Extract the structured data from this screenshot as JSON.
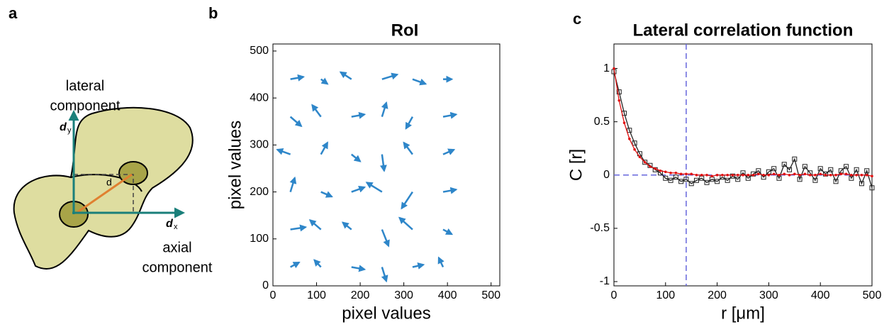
{
  "diagram": {
    "panel_label": "a",
    "lateral_line1": "lateral",
    "lateral_line2": "component",
    "axial_line1": "axial",
    "axial_line2": "component",
    "dy_main": "d",
    "dy_sub": "y",
    "dx_main": "d",
    "dx_sub": "x",
    "distance_label": "d"
  },
  "chart_data": [
    {
      "type": "quiver",
      "panel_label": "b",
      "title": "RoI",
      "x_label": "pixel values",
      "y_label": "pixel values",
      "color": "#2e86c9",
      "xlim": [
        0,
        520
      ],
      "ylim": [
        0,
        515
      ],
      "xticks": [
        0,
        100,
        200,
        300,
        400,
        500
      ],
      "yticks": [
        0,
        100,
        200,
        300,
        400,
        500
      ],
      "x": [
        40,
        110,
        180,
        250,
        320,
        390,
        40,
        110,
        180,
        250,
        320,
        390,
        40,
        110,
        180,
        250,
        320,
        390,
        40,
        110,
        180,
        250,
        320,
        390,
        40,
        110,
        180,
        250,
        320,
        390,
        40,
        110,
        180,
        250,
        320,
        390
      ],
      "y": [
        40,
        40,
        40,
        40,
        40,
        40,
        120,
        120,
        120,
        120,
        120,
        120,
        200,
        200,
        200,
        200,
        200,
        200,
        280,
        280,
        280,
        280,
        280,
        280,
        360,
        360,
        360,
        360,
        360,
        360,
        440,
        440,
        440,
        440,
        440,
        440
      ],
      "u": [
        20,
        -15,
        30,
        10,
        25,
        -10,
        35,
        -25,
        -20,
        15,
        -30,
        20,
        10,
        25,
        30,
        -35,
        -25,
        30,
        -30,
        15,
        20,
        5,
        -20,
        25,
        25,
        -20,
        30,
        10,
        -15,
        30,
        30,
        15,
        -25,
        35,
        30,
        20
      ],
      "v": [
        10,
        15,
        -5,
        -30,
        5,
        20,
        5,
        20,
        15,
        -35,
        25,
        -10,
        30,
        -10,
        10,
        20,
        -35,
        5,
        10,
        25,
        -15,
        -35,
        25,
        10,
        -20,
        25,
        5,
        30,
        -25,
        5,
        5,
        -10,
        15,
        10,
        -10,
        0
      ]
    },
    {
      "type": "line",
      "panel_label": "c",
      "title": "Lateral correlation function",
      "x_label": "r [μm]",
      "y_label": "C [r]",
      "xlim": [
        0,
        500
      ],
      "ylim": [
        -1.04,
        1.23
      ],
      "xticks": [
        0,
        100,
        200,
        300,
        400,
        500
      ],
      "yticks": [
        -1,
        -0.5,
        0,
        0.5,
        1
      ],
      "vline": 140,
      "hline": 0,
      "line_color": "#6666dd",
      "x": [
        0,
        10,
        20,
        30,
        40,
        50,
        60,
        70,
        80,
        90,
        100,
        110,
        120,
        130,
        140,
        150,
        160,
        170,
        180,
        190,
        200,
        210,
        220,
        230,
        240,
        250,
        260,
        270,
        280,
        290,
        300,
        310,
        320,
        330,
        340,
        350,
        360,
        370,
        380,
        390,
        400,
        410,
        420,
        430,
        440,
        450,
        460,
        470,
        480,
        490,
        500
      ],
      "series": [
        {
          "color": "#222222",
          "marker": "square",
          "values": [
            0.97,
            0.78,
            0.58,
            0.42,
            0.3,
            0.2,
            0.12,
            0.09,
            0.05,
            0.02,
            -0.03,
            -0.05,
            -0.02,
            -0.06,
            -0.04,
            -0.08,
            -0.05,
            -0.03,
            -0.07,
            -0.04,
            -0.06,
            -0.02,
            -0.05,
            -0.01,
            -0.04,
            0.02,
            -0.03,
            0.01,
            0.04,
            -0.02,
            0.03,
            0.06,
            -0.03,
            0.1,
            0.05,
            0.15,
            -0.04,
            0.08,
            0.02,
            -0.05,
            0.06,
            0.01,
            0.05,
            -0.06,
            0.04,
            0.08,
            -0.03,
            0.05,
            -0.08,
            0.04,
            -0.12
          ]
        },
        {
          "color": "#e01010",
          "marker": "dot",
          "values": [
            1,
            0.7,
            0.49,
            0.34,
            0.24,
            0.17,
            0.12,
            0.08,
            0.06,
            0.04,
            0.03,
            0.02,
            0.02,
            0.01,
            0.01,
            0.01,
            0,
            0,
            0,
            -0.01,
            0,
            0,
            0,
            0,
            0,
            0,
            0,
            0,
            0.01,
            0,
            0,
            0.01,
            0,
            0.01,
            0,
            0.01,
            0,
            0.01,
            0,
            0,
            0.01,
            0,
            0,
            0,
            0.01,
            0.01,
            0,
            0,
            0,
            0,
            -0.01
          ]
        }
      ]
    }
  ]
}
